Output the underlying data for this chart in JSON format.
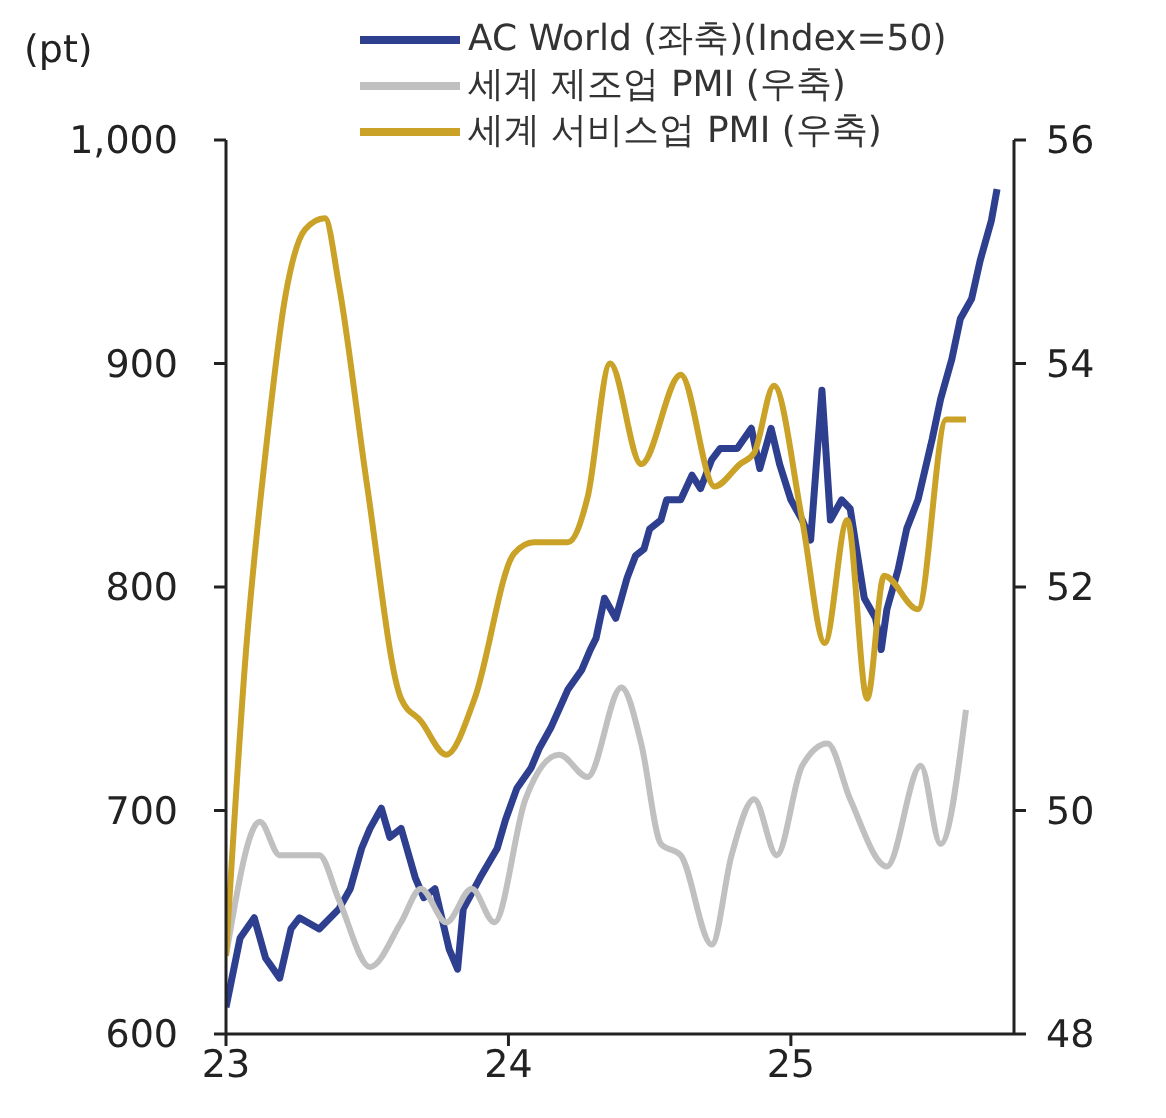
{
  "chart_data": {
    "type": "line",
    "ylabel": "(pt)",
    "xlim": [
      23,
      25.79
    ],
    "xticks": [
      23,
      24,
      25
    ],
    "ylim": [
      600,
      1000
    ],
    "yticks": [
      600,
      700,
      800,
      900,
      {
        "value": 1000,
        "label": "1,000"
      }
    ],
    "y2lim": [
      48,
      56
    ],
    "y2ticks": [
      48,
      50,
      52,
      54,
      56
    ],
    "legend": "top",
    "grid": false,
    "marker": "none",
    "line_style": "solid",
    "series": [
      {
        "name": "AC World (좌축)(Index=50)",
        "color": "#2e3f8f",
        "x": [
          23.0,
          23.05,
          23.1,
          23.14,
          23.19,
          23.23,
          23.26,
          23.33,
          23.4,
          23.44,
          23.48,
          23.51,
          23.55,
          23.58,
          23.62,
          23.67,
          23.7,
          23.74,
          23.79,
          23.82,
          23.84,
          23.9,
          23.96,
          23.99,
          24.03,
          24.08,
          24.11,
          24.15,
          24.21,
          24.26,
          24.29,
          24.31,
          24.34,
          24.38,
          24.42,
          24.45,
          24.48,
          24.5,
          24.54,
          24.56,
          24.61,
          24.65,
          24.68,
          24.72,
          24.75,
          24.81,
          24.86,
          24.89,
          24.93,
          24.96,
          25.0,
          25.04,
          25.07,
          25.11,
          25.14,
          25.18,
          25.21,
          25.26,
          25.3,
          25.32,
          25.34,
          25.38,
          25.41,
          25.45,
          25.5,
          25.53,
          25.57,
          25.6,
          25.64,
          25.67,
          25.71,
          25.73
        ],
        "values": [
          612,
          643,
          652,
          634,
          625,
          647,
          652,
          647,
          656,
          665,
          683,
          692,
          701,
          688,
          692,
          670,
          661,
          665,
          638,
          629,
          656,
          670,
          683,
          696,
          710,
          719,
          728,
          737,
          754,
          763,
          772,
          777,
          795,
          786,
          804,
          814,
          817,
          826,
          830,
          839,
          839,
          850,
          844,
          857,
          862,
          862,
          871,
          853,
          871,
          855,
          839,
          830,
          821,
          888,
          830,
          839,
          835,
          795,
          786,
          772,
          790,
          808,
          826,
          839,
          866,
          884,
          902,
          920,
          929,
          946,
          964,
          978
        ]
      },
      {
        "name": "세계 제조업 PMI (우축)",
        "color": "#c0c0c0",
        "axis": "y2",
        "x": [
          23.0,
          23.12,
          23.19,
          23.33,
          23.4,
          23.51,
          23.62,
          23.69,
          23.78,
          23.87,
          23.95,
          24.06,
          24.18,
          24.28,
          24.4,
          24.47,
          24.54,
          24.61,
          24.72,
          24.79,
          24.87,
          24.95,
          25.04,
          25.13,
          25.21,
          25.34,
          25.46,
          25.53,
          25.62
        ],
        "values": [
          48.7,
          49.9,
          49.6,
          49.6,
          49.2,
          48.6,
          49.0,
          49.3,
          49.0,
          49.3,
          49.0,
          50.1,
          50.5,
          50.3,
          51.1,
          50.6,
          49.7,
          49.6,
          48.8,
          49.6,
          50.1,
          49.6,
          50.4,
          50.6,
          50.1,
          49.5,
          50.4,
          49.7,
          50.9
        ]
      },
      {
        "name": "세계 서비스업 PMI (우축)",
        "color": "#c9a227",
        "axis": "y2",
        "x": [
          23.0,
          23.07,
          23.14,
          23.21,
          23.28,
          23.35,
          23.4,
          23.5,
          23.62,
          23.69,
          23.78,
          23.88,
          24.02,
          24.09,
          24.21,
          24.28,
          24.36,
          24.47,
          24.61,
          24.73,
          24.82,
          24.87,
          24.94,
          25.04,
          25.12,
          25.2,
          25.27,
          25.33,
          25.45,
          25.55,
          25.62
        ],
        "values": [
          48.7,
          51.4,
          53.2,
          54.6,
          55.2,
          55.3,
          54.7,
          52.9,
          51.0,
          50.8,
          50.5,
          51.0,
          52.3,
          52.4,
          52.4,
          52.8,
          54.0,
          53.1,
          53.9,
          52.9,
          53.1,
          53.2,
          53.8,
          52.6,
          51.5,
          52.6,
          51.0,
          52.1,
          51.8,
          53.5,
          53.5
        ]
      }
    ]
  }
}
